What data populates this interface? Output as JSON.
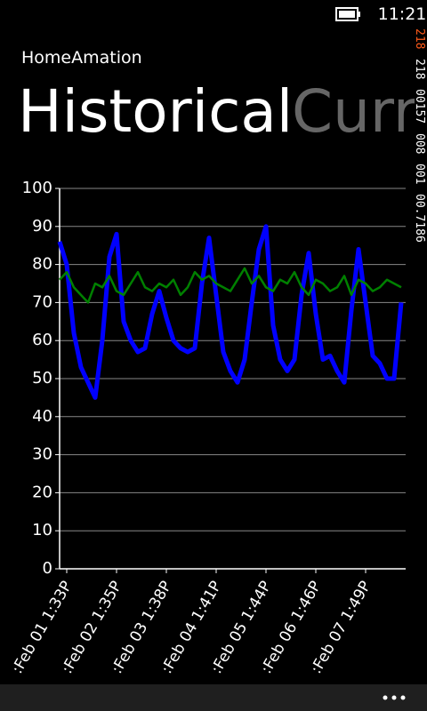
{
  "status_bar": {
    "time": "11:21"
  },
  "app": {
    "name": "HomeAmation",
    "pivot_items": [
      "Historical",
      "Current"
    ]
  },
  "debug_counter": {
    "lines": [
      "218",
      "218",
      "00157",
      "008",
      "001",
      "00.7186"
    ]
  },
  "chart_data": {
    "type": "line",
    "categories": [
      null,
      ":Feb 01 1:33P",
      null,
      null,
      null,
      null,
      null,
      null,
      ":Feb 02 1:35P",
      null,
      null,
      null,
      null,
      null,
      null,
      ":Feb 03 1:38P",
      null,
      null,
      null,
      null,
      null,
      null,
      ":Feb 04 1:41P",
      null,
      null,
      null,
      null,
      null,
      null,
      ":Feb 05 1:44P",
      null,
      null,
      null,
      null,
      null,
      null,
      ":Feb 06 1:46P",
      null,
      null,
      null,
      null,
      null,
      null,
      ":Feb 07 1:49P",
      null,
      null,
      null,
      null,
      null
    ],
    "series": [
      {
        "color": "#0000ff",
        "values": [
          86,
          80,
          62,
          53,
          49,
          45,
          60,
          82,
          88,
          65,
          60,
          57,
          58,
          67,
          73,
          66,
          60,
          58,
          57,
          58,
          75,
          87,
          72,
          57,
          52,
          49,
          55,
          70,
          84,
          90,
          64,
          55,
          52,
          55,
          72,
          83,
          67,
          55,
          56,
          52,
          49,
          68,
          84,
          70,
          56,
          54,
          50,
          50,
          70
        ]
      },
      {
        "color": "#008000",
        "values": [
          76,
          78,
          74,
          72,
          70,
          75,
          74,
          77,
          73,
          72,
          75,
          78,
          74,
          73,
          75,
          74,
          76,
          72,
          74,
          78,
          76,
          77,
          75,
          74,
          73,
          76,
          79,
          75,
          77,
          74,
          73,
          76,
          75,
          78,
          74,
          72,
          76,
          75,
          73,
          74,
          77,
          72,
          76,
          75,
          73,
          74,
          76,
          75,
          74
        ]
      }
    ],
    "ylim": [
      0,
      100
    ],
    "yticks": [
      0,
      10,
      20,
      30,
      40,
      50,
      60,
      70,
      80,
      90,
      100
    ],
    "grid": true
  }
}
